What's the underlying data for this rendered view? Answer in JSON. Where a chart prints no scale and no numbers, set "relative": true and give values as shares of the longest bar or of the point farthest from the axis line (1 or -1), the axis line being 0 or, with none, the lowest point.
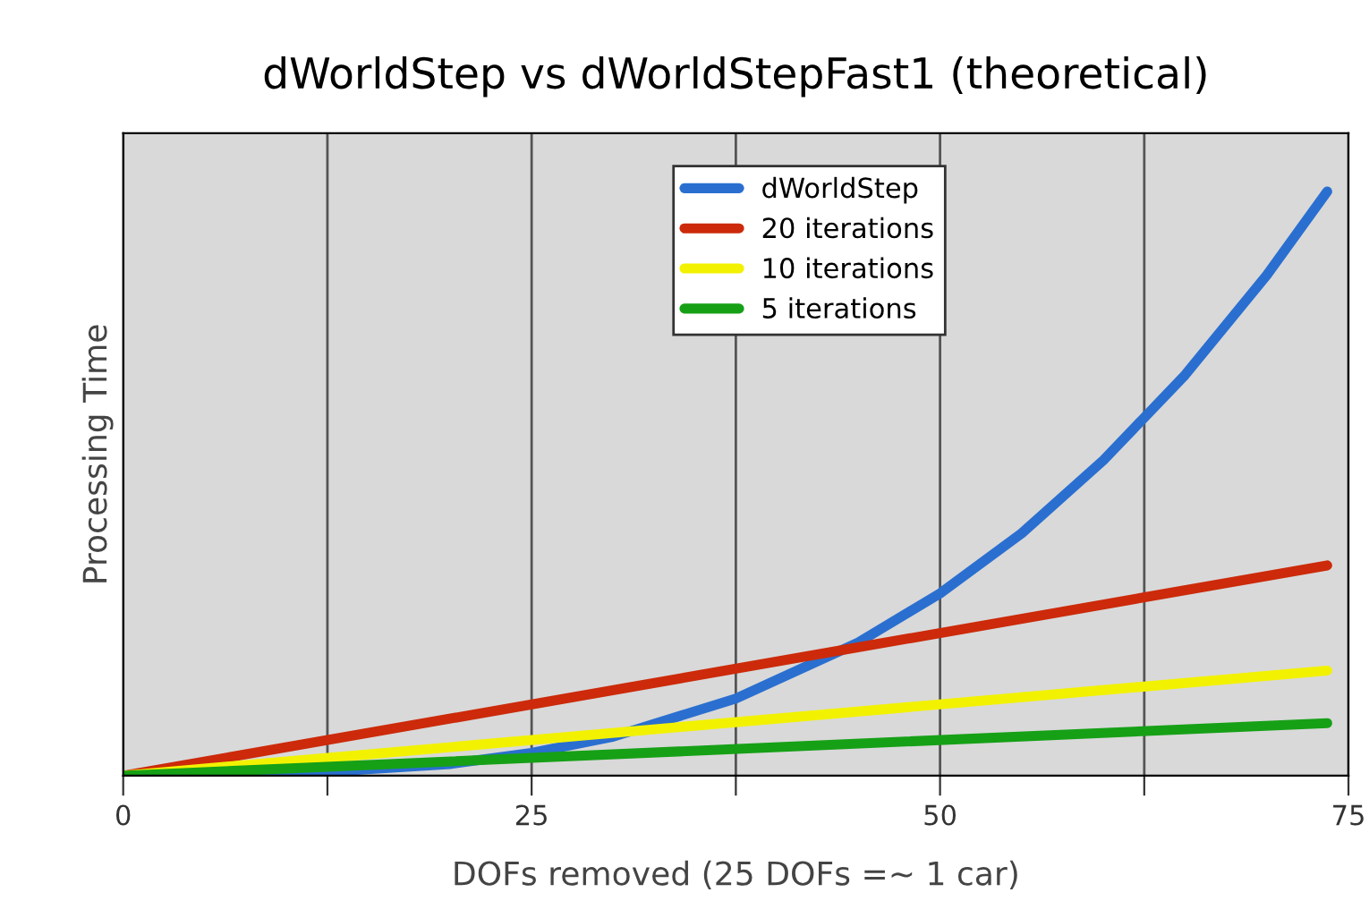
{
  "chart_data": {
    "type": "line",
    "title": "dWorldStep vs dWorldStepFast1 (theoretical)",
    "xlabel": "DOFs removed (25 DOFs =~ 1 car)",
    "ylabel": "Processing Time",
    "relative": true,
    "xlim": [
      0,
      75
    ],
    "xticks": [
      0,
      {
        "value": 12.5,
        "label": null
      },
      25,
      {
        "value": 37.5,
        "label": null
      },
      50,
      {
        "value": 62.5,
        "label": null
      },
      75
    ],
    "grid": "x",
    "legend": "top",
    "line_style": "solid",
    "series": [
      {
        "name": "dWorldStep",
        "color": "#2a6fd0",
        "x": [
          0,
          10,
          20,
          25,
          30,
          37.5,
          45,
          50,
          55,
          60,
          65,
          70,
          73.7
        ],
        "values": [
          0,
          0.0025,
          0.02,
          0.039,
          0.067,
          0.132,
          0.228,
          0.312,
          0.415,
          0.54,
          0.686,
          0.857,
          1
        ]
      },
      {
        "name": "20 iterations",
        "color": "#cc2a0a",
        "x": [
          0,
          73.7
        ],
        "values": [
          0,
          0.36
        ]
      },
      {
        "name": "10 iterations",
        "color": "#f2f200",
        "x": [
          0,
          73.7
        ],
        "values": [
          0,
          0.18
        ]
      },
      {
        "name": "5 iterations",
        "color": "#16a016",
        "x": [
          0,
          73.7
        ],
        "values": [
          0,
          0.09
        ]
      }
    ]
  }
}
